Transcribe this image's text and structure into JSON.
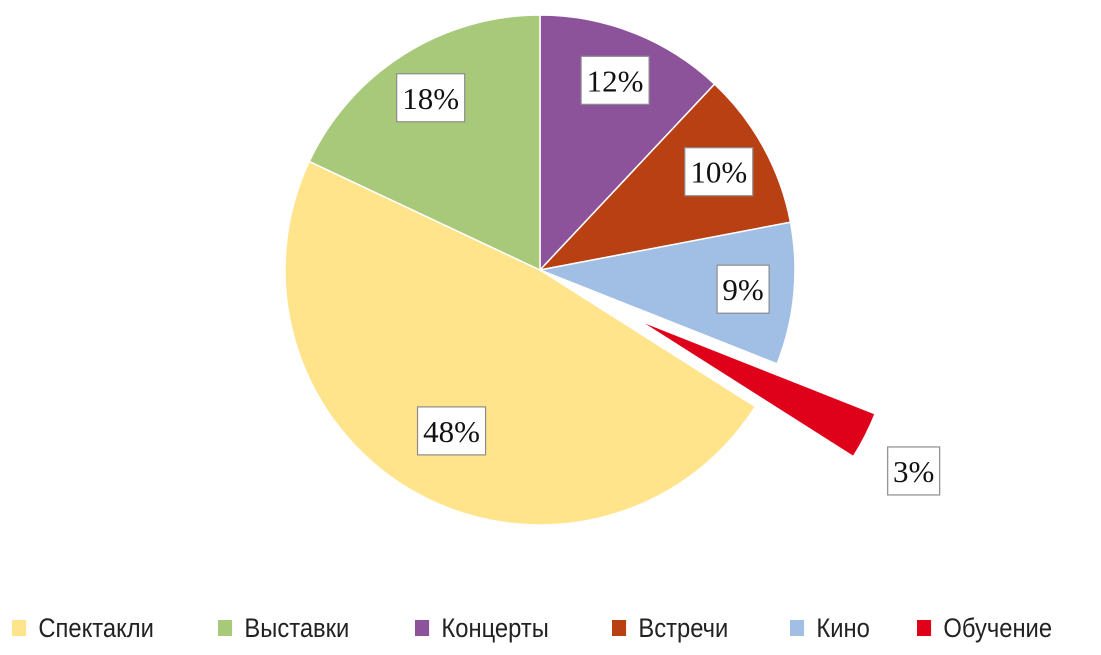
{
  "chart_data": {
    "type": "pie",
    "title": "",
    "start": "top, clockwise",
    "slices": [
      {
        "label": "Концерты",
        "value": 12,
        "data_label": "12%",
        "color": "#8C539A",
        "exploded": false
      },
      {
        "label": "Встречи",
        "value": 10,
        "data_label": "10%",
        "color": "#B84013",
        "exploded": false
      },
      {
        "label": "Кино",
        "value": 9,
        "data_label": "9%",
        "color": "#A1BFE4",
        "exploded": false
      },
      {
        "label": "Обучение",
        "value": 3,
        "data_label": "3%",
        "color": "#DF0019",
        "exploded": true
      },
      {
        "label": "Спектакли",
        "value": 48,
        "data_label": "48%",
        "color": "#FFE48C",
        "exploded": false
      },
      {
        "label": "Выставки",
        "value": 18,
        "data_label": "18%",
        "color": "#A8C97A",
        "exploded": false
      }
    ],
    "legend": [
      "Спектакли",
      "Выставки",
      "Концерты",
      "Встречи",
      "Кино",
      "Обучение"
    ],
    "legend_placement": "bottom"
  }
}
